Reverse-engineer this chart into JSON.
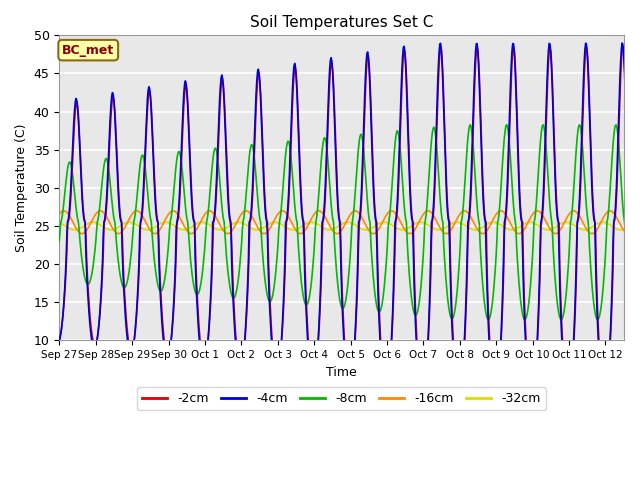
{
  "title": "Soil Temperatures Set C",
  "xlabel": "Time",
  "ylabel": "Soil Temperature (C)",
  "ylim": [
    10,
    50
  ],
  "annotation": "BC_met",
  "legend_labels": [
    "-2cm",
    "-4cm",
    "-8cm",
    "-16cm",
    "-32cm"
  ],
  "legend_colors": [
    "#dd0000",
    "#0000dd",
    "#00bb00",
    "#ff8800",
    "#dddd00"
  ],
  "tick_labels": [
    "Sep 27",
    "Sep 28",
    "Sep 29",
    "Sep 30",
    "Oct 1",
    "Oct 2",
    "Oct 3",
    "Oct 4",
    "Oct 5",
    "Oct 6",
    "Oct 7",
    "Oct 8",
    "Oct 9",
    "Oct 10",
    "Oct 11",
    "Oct 12"
  ],
  "bg_color": "#e8e8e8",
  "grid_color": "#ffffff",
  "n_days": 16
}
